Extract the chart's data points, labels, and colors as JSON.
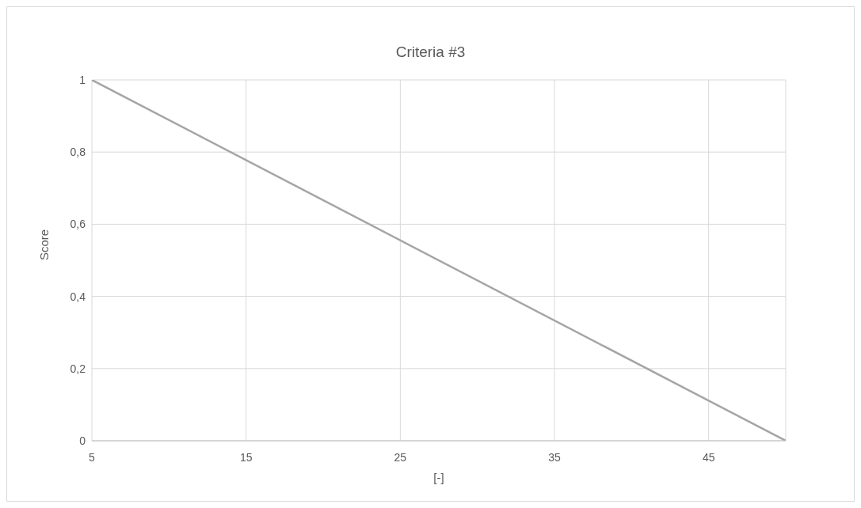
{
  "chart_data": {
    "type": "line",
    "title": "Criteria #3",
    "xlabel": "[-]",
    "ylabel": "Score",
    "x": [
      5,
      50
    ],
    "series": [
      {
        "color": "#a5a5a5",
        "values": [
          1,
          0
        ]
      }
    ],
    "xlim": [
      5,
      50
    ],
    "xticks": [
      5,
      15,
      25,
      35,
      45
    ],
    "ylim": [
      0,
      1
    ],
    "yticks": [
      {
        "value": 0,
        "label": "0"
      },
      {
        "value": 0.2,
        "label": "0,2"
      },
      {
        "value": 0.4,
        "label": "0,4"
      },
      {
        "value": 0.6,
        "label": "0,6"
      },
      {
        "value": 0.8,
        "label": "0,8"
      },
      {
        "value": 1,
        "label": "1"
      }
    ],
    "grid": true,
    "marker": "none",
    "line_style": "solid"
  }
}
